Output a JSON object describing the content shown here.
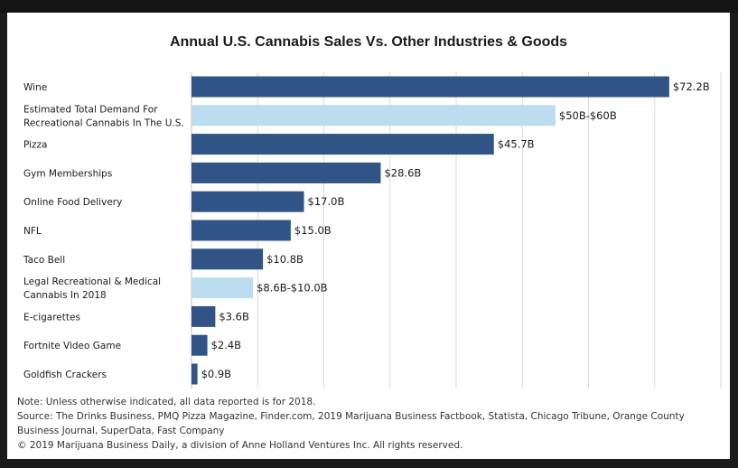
{
  "chart_data": {
    "type": "bar",
    "orientation": "horizontal",
    "title": "Annual U.S. Cannabis Sales Vs. Other Industries & Goods",
    "xlim": [
      0,
      80
    ],
    "grid": true,
    "categories": [
      "Wine",
      [
        "Estimated Total Demand For",
        "Recreational Cannabis In The U.S."
      ],
      "Pizza",
      "Gym Memberships",
      "Online Food Delivery",
      "NFL",
      "Taco Bell",
      [
        "Legal Recreational & Medical",
        "Cannabis In 2018"
      ],
      "E-cigarettes",
      "Fortnite Video Game",
      "Goldfish Crackers"
    ],
    "values": [
      72.2,
      55,
      45.7,
      28.6,
      17.0,
      15.0,
      10.8,
      9.3,
      3.6,
      2.4,
      0.9
    ],
    "value_labels": [
      "$72.2B",
      "$50B-$60B",
      "$45.7B",
      "$28.6B",
      "$17.0B",
      "$15.0B",
      "$10.8B",
      "$8.6B-$10.0B",
      "$3.6B",
      "$2.4B",
      "$0.9B"
    ],
    "highlight": [
      false,
      true,
      false,
      false,
      false,
      false,
      false,
      true,
      false,
      false,
      false
    ],
    "colors": {
      "primary": "#2f5485",
      "highlight": "#bcdcf0",
      "grid": "#d9d9d9"
    }
  },
  "notes": {
    "note": "Note: Unless otherwise indicated, all data reported is for 2018.",
    "source": "Source: The Drinks Business, PMQ Pizza Magazine, Finder.com, 2019 Marijuana Business Factbook, Statista, Chicago Tribune, Orange County Business Journal, SuperData, Fast Company",
    "copyright": "© 2019 Marijuana Business Daily, a division of Anne Holland Ventures Inc. All rights reserved."
  }
}
